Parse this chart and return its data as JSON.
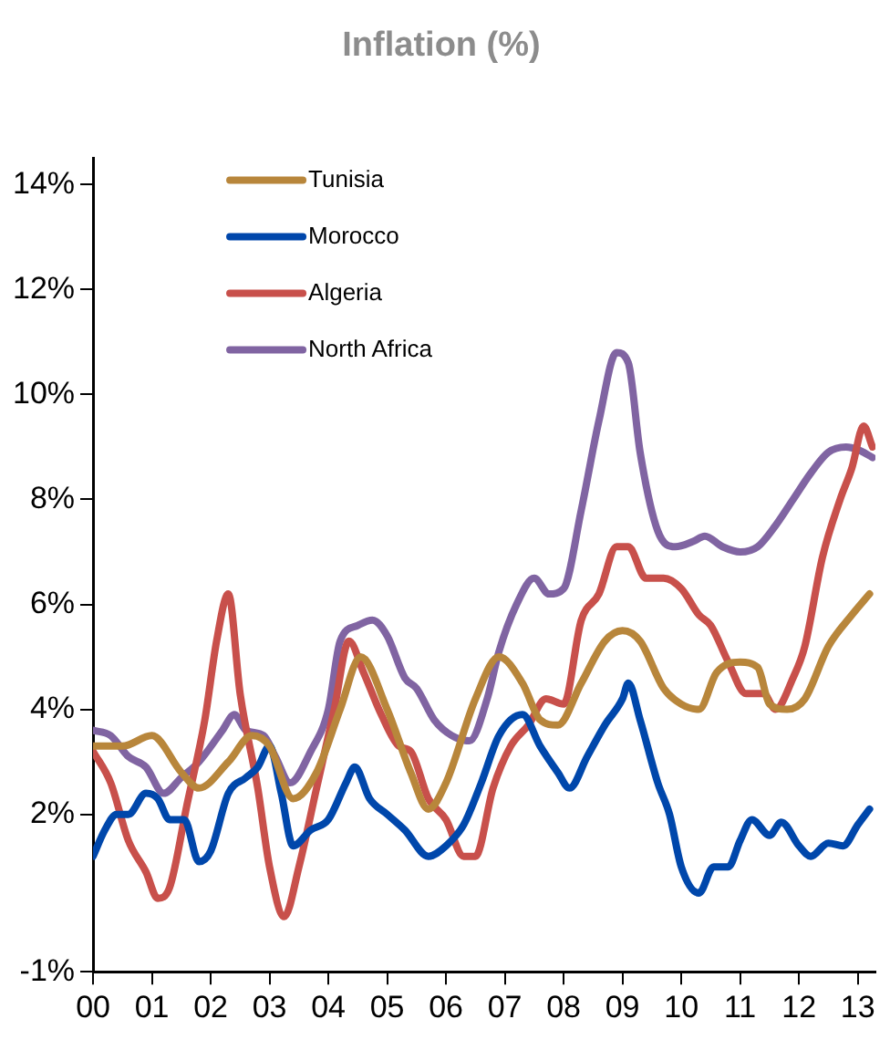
{
  "chart_data": {
    "type": "line",
    "title": "Inflation (%)",
    "xlim": [
      2000,
      2013.3
    ],
    "xticks": [
      {
        "value": 2000,
        "label": "00"
      },
      {
        "value": 2001,
        "label": "01"
      },
      {
        "value": 2002,
        "label": "02"
      },
      {
        "value": 2003,
        "label": "03"
      },
      {
        "value": 2004,
        "label": "04"
      },
      {
        "value": 2005,
        "label": "05"
      },
      {
        "value": 2006,
        "label": "06"
      },
      {
        "value": 2007,
        "label": "07"
      },
      {
        "value": 2008,
        "label": "08"
      },
      {
        "value": 2009,
        "label": "09"
      },
      {
        "value": 2010,
        "label": "10"
      },
      {
        "value": 2011,
        "label": "11"
      },
      {
        "value": 2012,
        "label": "12"
      },
      {
        "value": 2013,
        "label": "13"
      }
    ],
    "ylim": [
      -1,
      14.5
    ],
    "yticks": [
      {
        "value": -1,
        "label": "-1%"
      },
      {
        "value": 2,
        "label": "2%"
      },
      {
        "value": 4,
        "label": "4%"
      },
      {
        "value": 6,
        "label": "6%"
      },
      {
        "value": 8,
        "label": "8%"
      },
      {
        "value": 10,
        "label": "10%"
      },
      {
        "value": 12,
        "label": "12%"
      },
      {
        "value": 14,
        "label": "14%"
      }
    ],
    "grid": false,
    "legend": "top left",
    "marker": "none",
    "line_style": "solid",
    "series": [
      {
        "name": "Tunisia",
        "color": "#b8863b",
        "x": [
          2000,
          2000.5,
          2001,
          2001.5,
          2001.8,
          2002.3,
          2002.7,
          2003,
          2003.4,
          2003.8,
          2004.2,
          2004.55,
          2005,
          2005.4,
          2005.7,
          2006,
          2006.5,
          2006.9,
          2007.3,
          2007.6,
          2007.9,
          2008.3,
          2008.7,
          2009,
          2009.3,
          2009.7,
          2010,
          2010.3,
          2010.6,
          2011,
          2011.3,
          2011.5,
          2011.8,
          2012.1,
          2012.5,
          2012.9,
          2013.2
        ],
        "values": [
          3.3,
          3.3,
          3.5,
          2.8,
          2.5,
          3.0,
          3.5,
          3.3,
          2.3,
          2.8,
          4.0,
          5.0,
          4.0,
          2.8,
          2.1,
          2.6,
          4.2,
          5.0,
          4.5,
          3.8,
          3.7,
          4.5,
          5.3,
          5.5,
          5.3,
          4.4,
          4.1,
          4.0,
          4.7,
          4.9,
          4.8,
          4.1,
          4.0,
          4.2,
          5.2,
          5.8,
          6.2
        ]
      },
      {
        "name": "Morocco",
        "color": "#0047ab",
        "x": [
          2000,
          2000.2,
          2000.4,
          2000.6,
          2000.9,
          2001.1,
          2001.3,
          2001.55,
          2001.8,
          2002,
          2002.3,
          2002.6,
          2002.8,
          2003,
          2003.2,
          2003.4,
          2003.7,
          2004,
          2004.3,
          2004.45,
          2004.7,
          2005,
          2005.3,
          2005.7,
          2006,
          2006.3,
          2006.6,
          2006.9,
          2007.3,
          2007.6,
          2007.9,
          2008.1,
          2008.4,
          2008.7,
          2009,
          2009.1,
          2009.3,
          2009.6,
          2009.8,
          2010,
          2010.3,
          2010.55,
          2010.8,
          2011,
          2011.2,
          2011.5,
          2011.7,
          2012,
          2012.2,
          2012.5,
          2012.75,
          2013,
          2013.2
        ],
        "values": [
          1.2,
          1.7,
          2.0,
          2.0,
          2.4,
          2.3,
          1.9,
          1.9,
          1.1,
          1.3,
          2.4,
          2.7,
          2.9,
          3.3,
          2.4,
          1.4,
          1.7,
          1.9,
          2.6,
          2.9,
          2.3,
          2.0,
          1.7,
          1.2,
          1.4,
          1.8,
          2.6,
          3.5,
          3.9,
          3.3,
          2.8,
          2.5,
          3.1,
          3.7,
          4.2,
          4.5,
          3.8,
          2.6,
          2.0,
          1.0,
          0.5,
          1.0,
          1.0,
          1.5,
          1.9,
          1.6,
          1.85,
          1.4,
          1.2,
          1.45,
          1.4,
          1.8,
          2.1
        ]
      },
      {
        "name": "Algeria",
        "color": "#c8504b",
        "x": [
          2000,
          2000.3,
          2000.6,
          2000.9,
          2001.1,
          2001.3,
          2001.6,
          2001.9,
          2002.1,
          2002.3,
          2002.5,
          2002.8,
          2003,
          2003.25,
          2003.5,
          2003.8,
          2004.1,
          2004.35,
          2004.6,
          2004.9,
          2005.2,
          2005.4,
          2005.7,
          2006,
          2006.3,
          2006.5,
          2006.8,
          2007.1,
          2007.4,
          2007.7,
          2008,
          2008.3,
          2008.6,
          2008.9,
          2009.1,
          2009.4,
          2009.7,
          2010,
          2010.3,
          2010.5,
          2010.8,
          2011.1,
          2011.4,
          2011.6,
          2011.9,
          2012.1,
          2012.4,
          2012.7,
          2012.9,
          2013.1,
          2013.25
        ],
        "values": [
          3.2,
          2.6,
          1.5,
          0.9,
          0.4,
          0.6,
          2.2,
          3.8,
          5.3,
          6.2,
          4.3,
          2.5,
          1.0,
          0.05,
          1.0,
          2.5,
          4.0,
          5.3,
          4.7,
          3.9,
          3.3,
          3.2,
          2.3,
          1.9,
          1.2,
          1.2,
          2.5,
          3.3,
          3.7,
          4.2,
          4.1,
          5.7,
          6.2,
          7.1,
          7.1,
          6.5,
          6.5,
          6.3,
          5.8,
          5.6,
          4.9,
          4.3,
          4.3,
          4.0,
          4.6,
          5.2,
          6.9,
          8.0,
          8.6,
          9.4,
          9.0
        ]
      },
      {
        "name": "North Africa",
        "color": "#8064a2",
        "x": [
          2000,
          2000.3,
          2000.6,
          2000.9,
          2001.2,
          2001.5,
          2001.8,
          2002.2,
          2002.4,
          2002.6,
          2002.9,
          2003.1,
          2003.35,
          2003.7,
          2004,
          2004.2,
          2004.5,
          2004.75,
          2005,
          2005.3,
          2005.5,
          2005.8,
          2006.1,
          2006.4,
          2006.7,
          2006.9,
          2007.2,
          2007.5,
          2007.75,
          2008,
          2008.3,
          2008.6,
          2008.9,
          2009.1,
          2009.3,
          2009.6,
          2009.9,
          2010.2,
          2010.4,
          2010.7,
          2011,
          2011.3,
          2011.6,
          2011.9,
          2012.2,
          2012.5,
          2012.8,
          2013,
          2013.25
        ],
        "values": [
          3.6,
          3.5,
          3.1,
          2.9,
          2.4,
          2.7,
          3.0,
          3.6,
          3.9,
          3.6,
          3.5,
          3.1,
          2.6,
          3.2,
          4.0,
          5.3,
          5.6,
          5.7,
          5.4,
          4.6,
          4.4,
          3.8,
          3.5,
          3.4,
          4.2,
          5.1,
          6.0,
          6.5,
          6.2,
          6.3,
          7.8,
          9.5,
          10.8,
          10.6,
          8.9,
          7.4,
          7.1,
          7.2,
          7.3,
          7.1,
          7.0,
          7.1,
          7.5,
          8.0,
          8.5,
          8.9,
          9.0,
          8.95,
          8.8
        ]
      }
    ]
  }
}
